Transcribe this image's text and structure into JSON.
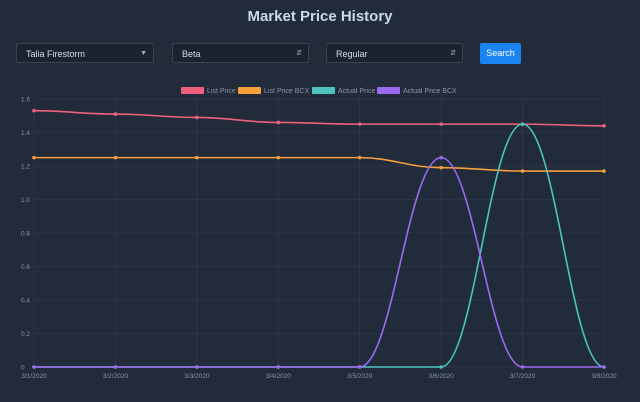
{
  "title": "Market Price History",
  "filters": {
    "player": "Talia Firestorm",
    "edition": "Beta",
    "variant": "Regular",
    "search_label": "Search"
  },
  "icons": {
    "player_caret": "caret-down-icon",
    "edition_caret": "sort-arrows-icon",
    "variant_caret": "sort-arrows-icon"
  },
  "colors": {
    "background": "#222b3a",
    "accent": "#1a84f0"
  },
  "chart_data": {
    "type": "line",
    "categories": [
      "3/1/2020",
      "3/2/2020",
      "3/3/2020",
      "3/4/2020",
      "3/5/2020",
      "3/6/2020",
      "3/7/2020",
      "3/8/2020"
    ],
    "ylim": [
      0,
      1.6
    ],
    "yticks": [
      0,
      0.2,
      0.4,
      0.6,
      0.8,
      1.0,
      1.2,
      1.4,
      1.6
    ],
    "ytick_labels": [
      "0",
      "0.2",
      "0.4",
      "0.6",
      "0.8",
      "1.0",
      "1.2",
      "1.4",
      "1.6"
    ],
    "grid": true,
    "legend_position": "top",
    "series": [
      {
        "name": "List Price",
        "color": "#f0607e",
        "values": [
          1.53,
          1.51,
          1.49,
          1.46,
          1.45,
          1.45,
          1.45,
          1.44
        ]
      },
      {
        "name": "List Price BCX",
        "color": "#f5a03a",
        "values": [
          1.25,
          1.25,
          1.25,
          1.25,
          1.25,
          1.19,
          1.17,
          1.17
        ]
      },
      {
        "name": "Actual Price",
        "color": "#4cc4bd",
        "values": [
          0,
          0,
          0,
          0,
          0,
          0,
          1.45,
          0
        ]
      },
      {
        "name": "Actual Price BCX",
        "color": "#9b6af0",
        "values": [
          0,
          0,
          0,
          0,
          0,
          1.25,
          0,
          0
        ]
      }
    ]
  }
}
